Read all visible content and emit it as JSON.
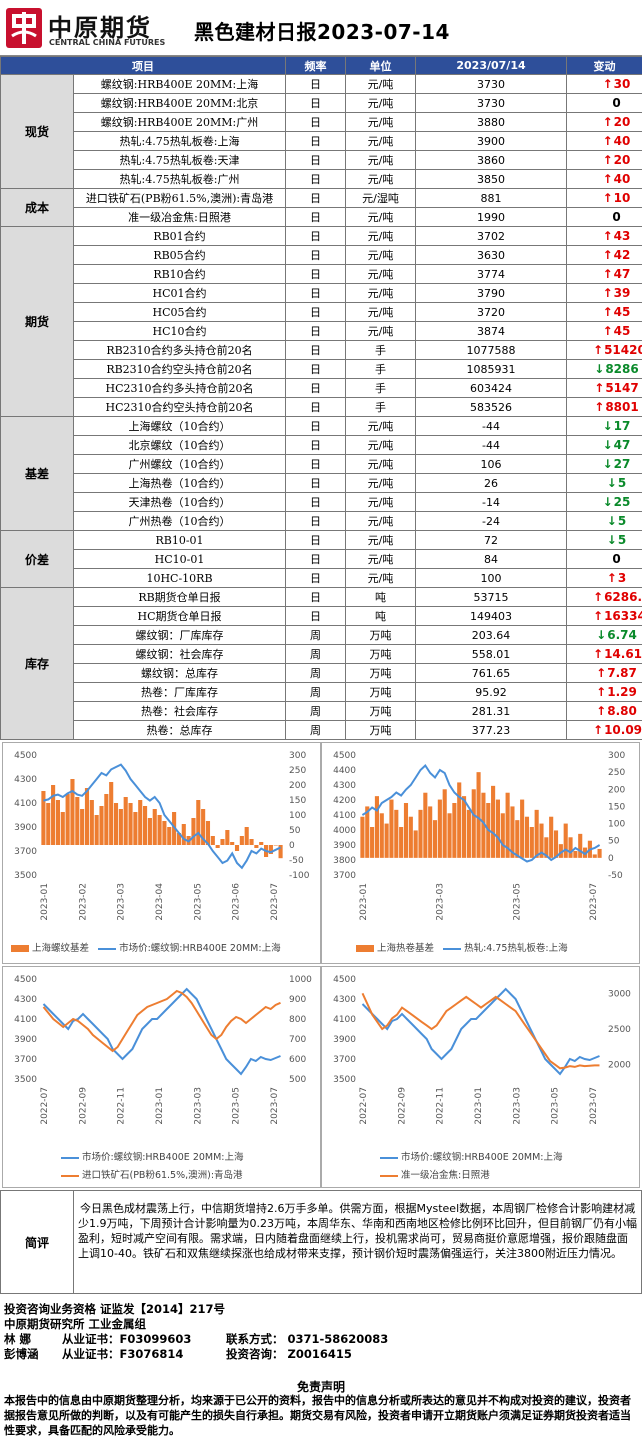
{
  "header": {
    "logo_cn": "中原期货",
    "logo_en": "CENTRAL CHINA FUTURES",
    "title": "黑色建材日报2023-07-14"
  },
  "table": {
    "headers": [
      "项目",
      "频率",
      "单位",
      "2023/07/14",
      "变动"
    ],
    "rows": [
      {
        "cat": "现货",
        "span": 6,
        "item": "螺纹钢:HRB400E 20MM:上海",
        "freq": "日",
        "unit": "元/吨",
        "value": "3730",
        "chg": "30",
        "dir": "up"
      },
      {
        "item": "螺纹钢:HRB400E 20MM:北京",
        "freq": "日",
        "unit": "元/吨",
        "value": "3730",
        "chg": "0",
        "dir": "flat"
      },
      {
        "item": "螺纹钢:HRB400E 20MM:广州",
        "freq": "日",
        "unit": "元/吨",
        "value": "3880",
        "chg": "20",
        "dir": "up"
      },
      {
        "item": "热轧:4.75热轧板卷:上海",
        "freq": "日",
        "unit": "元/吨",
        "value": "3900",
        "chg": "40",
        "dir": "up"
      },
      {
        "item": "热轧:4.75热轧板卷:天津",
        "freq": "日",
        "unit": "元/吨",
        "value": "3860",
        "chg": "20",
        "dir": "up"
      },
      {
        "item": "热轧:4.75热轧板卷:广州",
        "freq": "日",
        "unit": "元/吨",
        "value": "3850",
        "chg": "40",
        "dir": "up"
      },
      {
        "cat": "成本",
        "span": 2,
        "item": "进口铁矿石(PB粉61.5%,澳洲):青岛港",
        "freq": "日",
        "unit": "元/湿吨",
        "value": "881",
        "chg": "10",
        "dir": "up"
      },
      {
        "item": "准一级冶金焦:日照港",
        "freq": "日",
        "unit": "元/吨",
        "value": "1990",
        "chg": "0",
        "dir": "flat"
      },
      {
        "cat": "期货",
        "span": 10,
        "item": "RB01合约",
        "freq": "日",
        "unit": "元/吨",
        "value": "3702",
        "chg": "43",
        "dir": "up"
      },
      {
        "item": "RB05合约",
        "freq": "日",
        "unit": "元/吨",
        "value": "3630",
        "chg": "42",
        "dir": "up"
      },
      {
        "item": "RB10合约",
        "freq": "日",
        "unit": "元/吨",
        "value": "3774",
        "chg": "47",
        "dir": "up"
      },
      {
        "item": "HC01合约",
        "freq": "日",
        "unit": "元/吨",
        "value": "3790",
        "chg": "39",
        "dir": "up"
      },
      {
        "item": "HC05合约",
        "freq": "日",
        "unit": "元/吨",
        "value": "3720",
        "chg": "45",
        "dir": "up"
      },
      {
        "item": "HC10合约",
        "freq": "日",
        "unit": "元/吨",
        "value": "3874",
        "chg": "45",
        "dir": "up"
      },
      {
        "item": "RB2310合约多头持仓前20名",
        "freq": "日",
        "unit": "手",
        "value": "1077588",
        "chg": "51420",
        "dir": "up"
      },
      {
        "item": "RB2310合约空头持仓前20名",
        "freq": "日",
        "unit": "手",
        "value": "1085931",
        "chg": "8286",
        "dir": "down"
      },
      {
        "item": "HC2310合约多头持仓前20名",
        "freq": "日",
        "unit": "手",
        "value": "603424",
        "chg": "5147",
        "dir": "up"
      },
      {
        "item": "HC2310合约空头持仓前20名",
        "freq": "日",
        "unit": "手",
        "value": "583526",
        "chg": "8801",
        "dir": "up"
      },
      {
        "cat": "基差",
        "span": 6,
        "item": "上海螺纹（10合约）",
        "freq": "日",
        "unit": "元/吨",
        "value": "-44",
        "chg": "17",
        "dir": "down"
      },
      {
        "item": "北京螺纹（10合约）",
        "freq": "日",
        "unit": "元/吨",
        "value": "-44",
        "chg": "47",
        "dir": "down"
      },
      {
        "item": "广州螺纹（10合约）",
        "freq": "日",
        "unit": "元/吨",
        "value": "106",
        "chg": "27",
        "dir": "down"
      },
      {
        "item": "上海热卷（10合约）",
        "freq": "日",
        "unit": "元/吨",
        "value": "26",
        "chg": "5",
        "dir": "down"
      },
      {
        "item": "天津热卷（10合约）",
        "freq": "日",
        "unit": "元/吨",
        "value": "-14",
        "chg": "25",
        "dir": "down"
      },
      {
        "item": "广州热卷（10合约）",
        "freq": "日",
        "unit": "元/吨",
        "value": "-24",
        "chg": "5",
        "dir": "down"
      },
      {
        "cat": "价差",
        "span": 3,
        "item": "RB10-01",
        "freq": "日",
        "unit": "元/吨",
        "value": "72",
        "chg": "5",
        "dir": "down"
      },
      {
        "item": "HC10-01",
        "freq": "日",
        "unit": "元/吨",
        "value": "84",
        "chg": "0",
        "dir": "flat"
      },
      {
        "item": "10HC-10RB",
        "freq": "日",
        "unit": "元/吨",
        "value": "100",
        "chg": "3",
        "dir": "up"
      },
      {
        "cat": "库存",
        "span": 8,
        "item": "RB期货仓单日报",
        "freq": "日",
        "unit": "吨",
        "value": "53715",
        "chg": "6286.00",
        "dir": "up"
      },
      {
        "item": "HC期货仓单日报",
        "freq": "日",
        "unit": "吨",
        "value": "149403",
        "chg": "16334.00",
        "dir": "up"
      },
      {
        "item": "螺纹钢：厂库库存",
        "freq": "周",
        "unit": "万吨",
        "value": "203.64",
        "chg": "6.74",
        "dir": "down"
      },
      {
        "item": "螺纹钢：社会库存",
        "freq": "周",
        "unit": "万吨",
        "value": "558.01",
        "chg": "14.61",
        "dir": "up"
      },
      {
        "item": "螺纹钢：总库存",
        "freq": "周",
        "unit": "万吨",
        "value": "761.65",
        "chg": "7.87",
        "dir": "up"
      },
      {
        "item": "热卷：厂库库存",
        "freq": "周",
        "unit": "万吨",
        "value": "95.92",
        "chg": "1.29",
        "dir": "up"
      },
      {
        "item": "热卷：社会库存",
        "freq": "周",
        "unit": "万吨",
        "value": "281.31",
        "chg": "8.80",
        "dir": "up"
      },
      {
        "item": "热卷：总库存",
        "freq": "周",
        "unit": "万吨",
        "value": "377.23",
        "chg": "10.09",
        "dir": "up"
      }
    ]
  },
  "colors": {
    "bar": "#ed7d31",
    "blue": "#4a90d9",
    "orange": "#ed7d31",
    "up": "#e00000",
    "down": "#0a8a2a",
    "header_bg": "#2e4f9a"
  },
  "chart_data": [
    {
      "type": "bar+line",
      "left_axis": {
        "ticks": [
          "4500",
          "4300",
          "4100",
          "3900",
          "3700",
          "3500"
        ],
        "range": [
          3500,
          4500
        ]
      },
      "right_axis": {
        "ticks": [
          "300",
          "250",
          "200",
          "150",
          "100",
          "50",
          "0",
          "-50",
          "-100"
        ],
        "range": [
          -100,
          300
        ]
      },
      "x_ticks": [
        "2023-01",
        "2023-02",
        "2023-03",
        "2023-04",
        "2023-05",
        "2023-06",
        "2023-07"
      ],
      "legend": [
        "上海螺纹基差",
        "市场价:螺纹钢:HRB400E 20MM:上海"
      ],
      "series": [
        {
          "name": "上海螺纹基差",
          "kind": "bar",
          "axis": "right",
          "values": [
            180,
            140,
            200,
            150,
            110,
            170,
            220,
            160,
            120,
            190,
            150,
            100,
            130,
            170,
            210,
            140,
            120,
            160,
            140,
            110,
            150,
            130,
            90,
            120,
            100,
            80,
            60,
            110,
            40,
            70,
            30,
            90,
            150,
            120,
            80,
            30,
            -10,
            20,
            50,
            10,
            -20,
            30,
            60,
            20,
            -10,
            10,
            -40,
            -30,
            0,
            -44
          ]
        },
        {
          "name": "市场价:螺纹钢:HRB400E 20MM:上海",
          "kind": "line",
          "axis": "left",
          "values": [
            4120,
            4130,
            4160,
            4170,
            4150,
            4180,
            4200,
            4170,
            4160,
            4200,
            4250,
            4300,
            4350,
            4330,
            4380,
            4400,
            4420,
            4370,
            4300,
            4250,
            4200,
            4150,
            4120,
            4150,
            4100,
            4000,
            3950,
            3900,
            3850,
            3800,
            3780,
            3820,
            3850,
            3800,
            3760,
            3700,
            3650,
            3600,
            3620,
            3680,
            3600,
            3560,
            3620,
            3700,
            3680,
            3720,
            3700,
            3690,
            3710,
            3730
          ]
        }
      ]
    },
    {
      "type": "bar+line",
      "left_axis": {
        "ticks": [
          "4500",
          "4400",
          "4300",
          "4200",
          "4100",
          "4000",
          "3900",
          "3800",
          "3700"
        ],
        "range": [
          3700,
          4500
        ]
      },
      "right_axis": {
        "ticks": [
          "300",
          "250",
          "200",
          "150",
          "100",
          "50",
          "0",
          "-50"
        ],
        "range": [
          -50,
          300
        ]
      },
      "x_ticks": [
        "2023-01",
        "2023-03",
        "2023-05",
        "2023-07"
      ],
      "legend": [
        "上海热卷基差",
        "热轧:4.75热轧板卷:上海"
      ],
      "series": [
        {
          "name": "上海热卷基差",
          "kind": "bar",
          "axis": "right",
          "values": [
            120,
            150,
            90,
            180,
            130,
            100,
            170,
            140,
            90,
            160,
            120,
            80,
            140,
            190,
            150,
            110,
            170,
            200,
            130,
            160,
            220,
            180,
            140,
            200,
            250,
            190,
            160,
            210,
            170,
            130,
            190,
            150,
            110,
            170,
            120,
            90,
            140,
            100,
            60,
            120,
            80,
            40,
            100,
            60,
            20,
            70,
            30,
            50,
            10,
            26
          ]
        },
        {
          "name": "热轧:4.75热轧板卷:上海",
          "kind": "line",
          "axis": "left",
          "values": [
            4100,
            4120,
            4150,
            4130,
            4180,
            4200,
            4220,
            4250,
            4230,
            4270,
            4300,
            4350,
            4400,
            4430,
            4380,
            4350,
            4400,
            4380,
            4300,
            4250,
            4220,
            4200,
            4150,
            4100,
            4080,
            4050,
            4000,
            3980,
            3950,
            3900,
            3880,
            3850,
            3830,
            3810,
            3790,
            3800,
            3830,
            3850,
            3830,
            3800,
            3820,
            3850,
            3870,
            3850,
            3880,
            3860,
            3840,
            3870,
            3880,
            3900
          ]
        }
      ]
    },
    {
      "type": "line",
      "left_axis": {
        "ticks": [
          "4500",
          "4300",
          "4100",
          "3900",
          "3700",
          "3500"
        ],
        "range": [
          3500,
          4500
        ]
      },
      "right_axis": {
        "ticks": [
          "1000",
          "900",
          "800",
          "700",
          "600",
          "500"
        ],
        "range": [
          500,
          1000
        ]
      },
      "x_ticks": [
        "2022-07",
        "2022-09",
        "2022-11",
        "2023-01",
        "2023-03",
        "2023-05",
        "2023-07"
      ],
      "legend": [
        "市场价:螺纹钢:HRB400E 20MM:上海",
        "进口铁矿石(PB粉61.5%,澳洲):青岛港"
      ],
      "series": [
        {
          "name": "市场价:螺纹钢:HRB400E 20MM:上海",
          "kind": "line",
          "axis": "left",
          "values": [
            4250,
            4200,
            4150,
            4100,
            4050,
            4000,
            4080,
            4100,
            4150,
            4100,
            4050,
            4000,
            3950,
            3900,
            3800,
            3750,
            3700,
            3750,
            3800,
            3900,
            4000,
            4050,
            4100,
            4100,
            4150,
            4200,
            4250,
            4300,
            4350,
            4400,
            4350,
            4300,
            4200,
            4100,
            4000,
            3900,
            3800,
            3700,
            3650,
            3600,
            3550,
            3620,
            3700,
            3680,
            3720,
            3700,
            3690,
            3710,
            3730
          ]
        },
        {
          "name": "进口铁矿石(PB粉61.5%,澳洲):青岛港",
          "kind": "line",
          "axis": "right",
          "values": [
            860,
            830,
            800,
            780,
            760,
            780,
            800,
            790,
            770,
            750,
            720,
            700,
            680,
            660,
            640,
            660,
            700,
            740,
            780,
            820,
            840,
            860,
            870,
            880,
            890,
            900,
            920,
            940,
            930,
            910,
            880,
            840,
            800,
            760,
            720,
            700,
            720,
            760,
            790,
            810,
            800,
            780,
            800,
            820,
            840,
            860,
            850,
            870,
            881
          ]
        }
      ]
    },
    {
      "type": "line",
      "left_axis": {
        "ticks": [
          "4500",
          "4300",
          "4100",
          "3900",
          "3700",
          "3500"
        ],
        "range": [
          3500,
          4500
        ]
      },
      "right_axis": {
        "ticks": [
          "3000",
          "2500",
          "2000"
        ],
        "range": [
          1800,
          3200
        ]
      },
      "x_ticks": [
        "2022-07",
        "2022-09",
        "2022-11",
        "2023-01",
        "2023-03",
        "2023-05",
        "2023-07"
      ],
      "legend": [
        "市场价:螺纹钢:HRB400E 20MM:上海",
        "准一级冶金焦:日照港"
      ],
      "series": [
        {
          "name": "市场价:螺纹钢:HRB400E 20MM:上海",
          "kind": "line",
          "axis": "left",
          "values": [
            4250,
            4200,
            4150,
            4100,
            4050,
            4000,
            4080,
            4100,
            4150,
            4100,
            4050,
            4000,
            3950,
            3900,
            3800,
            3750,
            3700,
            3750,
            3800,
            3900,
            4000,
            4050,
            4100,
            4100,
            4150,
            4200,
            4250,
            4300,
            4350,
            4400,
            4350,
            4300,
            4200,
            4100,
            4000,
            3900,
            3800,
            3700,
            3650,
            3600,
            3550,
            3620,
            3700,
            3680,
            3720,
            3700,
            3690,
            3710,
            3730
          ]
        },
        {
          "name": "准一级冶金焦:日照港",
          "kind": "line",
          "axis": "right",
          "values": [
            3000,
            2850,
            2700,
            2600,
            2500,
            2550,
            2650,
            2700,
            2800,
            2750,
            2700,
            2650,
            2600,
            2550,
            2500,
            2550,
            2650,
            2750,
            2800,
            2850,
            2900,
            2950,
            2900,
            2850,
            2800,
            2850,
            2900,
            2950,
            2900,
            2850,
            2800,
            2750,
            2650,
            2550,
            2450,
            2350,
            2250,
            2150,
            2050,
            2000,
            1950,
            1960,
            1980,
            1970,
            1990,
            1980,
            1985,
            1990,
            1990
          ]
        }
      ]
    }
  ],
  "review": {
    "label": "简评",
    "text": "今日黑色成材震荡上行，中信期货增持2.6万手多单。供需方面，根据Mysteel数据，本周钢厂检修合计影响建材减少1.9万吨，下周预计合计影响量为0.23万吨，本周华东、华南和西南地区检修比例环比回升，但目前钢厂仍有小幅盈利，短时减产空间有限。需求端，日内随着盘面继续上行，投机需求尚可，贸易商挺价意愿增强，报价跟随盘面上调10-40。铁矿石和双焦继续探涨也给成材带来支撑，预计钢价短时震荡偏强运行，关注3800附近压力情况。"
  },
  "footer": {
    "line1": "投资咨询业务资格   证监发【2014】217号",
    "line2": "中原期货研究所    工业金属组",
    "p1_name": "林  娜",
    "p1_cert": "从业证书：F03099603",
    "contact": "联系方式：  0371-58620083",
    "p2_name": "彭博涵",
    "p2_cert": "从业证书：F3076814",
    "consult": "投资咨询：  Z0016415",
    "disclaimer_title": "免责声明",
    "disclaimer": "本报告中的信息由中原期货整理分析，均来源于已公开的资料，报告中的信息分析或所表达的意见并不构成对投资的建议，投资者据报告意见所做的判断，以及有可能产生的损失自行承担。期货交易有风险，投资者申请开立期货账户须满足证券期货投资者适当性要求，具备匹配的风险承受能力。"
  }
}
